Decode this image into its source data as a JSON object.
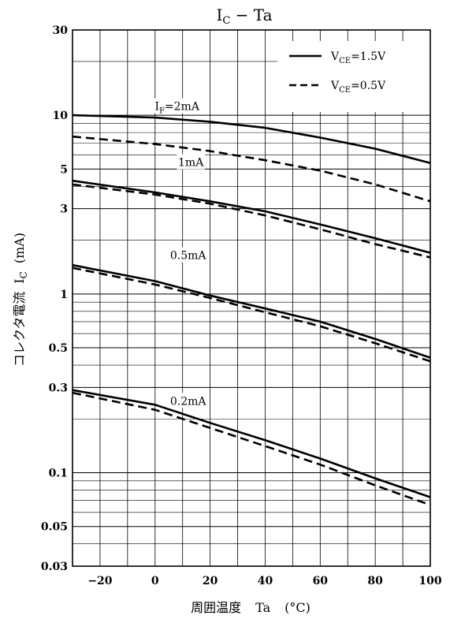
{
  "chart_data": {
    "type": "line",
    "title": {
      "main": "I",
      "sub": "C",
      "rest": " − Ta"
    },
    "xlabel": {
      "jp": "周囲温度",
      "sym": "Ta",
      "unit": "(°C)"
    },
    "ylabel": {
      "jp": "コレクタ電流",
      "sym": "I",
      "sub": "C",
      "unit": "(mA)"
    },
    "y_scale": "log",
    "xlim": [
      -30,
      100
    ],
    "ylim": [
      0.03,
      30
    ],
    "x_ticks": [
      {
        "value": -20,
        "label": "−20"
      },
      {
        "value": 0,
        "label": "0"
      },
      {
        "value": 20,
        "label": "20"
      },
      {
        "value": 40,
        "label": "40"
      },
      {
        "value": 60,
        "label": "60"
      },
      {
        "value": 80,
        "label": "80"
      },
      {
        "value": 100,
        "label": "100"
      }
    ],
    "y_ticks": [
      {
        "value": 0.03,
        "label": "0.03"
      },
      {
        "value": 0.05,
        "label": "0.05"
      },
      {
        "value": 0.1,
        "label": "0.1"
      },
      {
        "value": 0.3,
        "label": "0.3"
      },
      {
        "value": 0.5,
        "label": "0.5"
      },
      {
        "value": 1,
        "label": "1"
      },
      {
        "value": 3,
        "label": "3"
      },
      {
        "value": 5,
        "label": "5"
      },
      {
        "value": 10,
        "label": "10"
      },
      {
        "value": 30,
        "label": "30"
      }
    ],
    "grid": true,
    "x_grid_step": 10,
    "legend": {
      "position": "top-right",
      "entries": [
        {
          "style": "solid",
          "prefix": "V",
          "sub": "CE",
          "suffix": "=1.5V"
        },
        {
          "style": "dashed",
          "prefix": "V",
          "sub": "CE",
          "suffix": "=0.5V"
        }
      ]
    },
    "annotations": [
      {
        "main": "I",
        "sub": "F",
        "rest": "=2mA",
        "x": 8,
        "y": 10.9
      },
      {
        "main": "1mA",
        "sub": "",
        "rest": "",
        "x": 13,
        "y": 5.3
      },
      {
        "main": "0.5mA",
        "sub": "",
        "rest": "",
        "x": 12,
        "y": 1.6
      },
      {
        "main": "0.2mA",
        "sub": "",
        "rest": "",
        "x": 12,
        "y": 0.245
      }
    ],
    "series": [
      {
        "style": "solid",
        "x": [
          -30,
          0,
          20,
          40,
          60,
          80,
          100
        ],
        "values": [
          10,
          9.7,
          9.2,
          8.5,
          7.5,
          6.5,
          5.4
        ]
      },
      {
        "style": "dashed",
        "x": [
          -30,
          0,
          20,
          40,
          60,
          80,
          100
        ],
        "values": [
          7.6,
          6.9,
          6.3,
          5.6,
          4.9,
          4.1,
          3.3
        ]
      },
      {
        "style": "solid",
        "x": [
          -30,
          0,
          20,
          40,
          60,
          80,
          100
        ],
        "values": [
          4.3,
          3.7,
          3.3,
          2.9,
          2.45,
          2.05,
          1.7
        ]
      },
      {
        "style": "dashed",
        "x": [
          -30,
          0,
          20,
          40,
          60,
          80,
          100
        ],
        "values": [
          4.1,
          3.6,
          3.2,
          2.75,
          2.3,
          1.9,
          1.6
        ]
      },
      {
        "style": "solid",
        "x": [
          -30,
          0,
          20,
          40,
          60,
          80,
          100
        ],
        "values": [
          1.45,
          1.18,
          0.98,
          0.83,
          0.7,
          0.56,
          0.44
        ]
      },
      {
        "style": "dashed",
        "x": [
          -30,
          0,
          20,
          40,
          60,
          80,
          100
        ],
        "values": [
          1.4,
          1.13,
          0.95,
          0.79,
          0.66,
          0.53,
          0.42
        ]
      },
      {
        "style": "solid",
        "x": [
          -30,
          0,
          20,
          40,
          60,
          80,
          100
        ],
        "values": [
          0.29,
          0.24,
          0.19,
          0.152,
          0.12,
          0.093,
          0.073
        ]
      },
      {
        "style": "dashed",
        "x": [
          -30,
          0,
          20,
          40,
          60,
          80,
          100
        ],
        "values": [
          0.28,
          0.225,
          0.178,
          0.141,
          0.111,
          0.085,
          0.066
        ]
      }
    ]
  }
}
